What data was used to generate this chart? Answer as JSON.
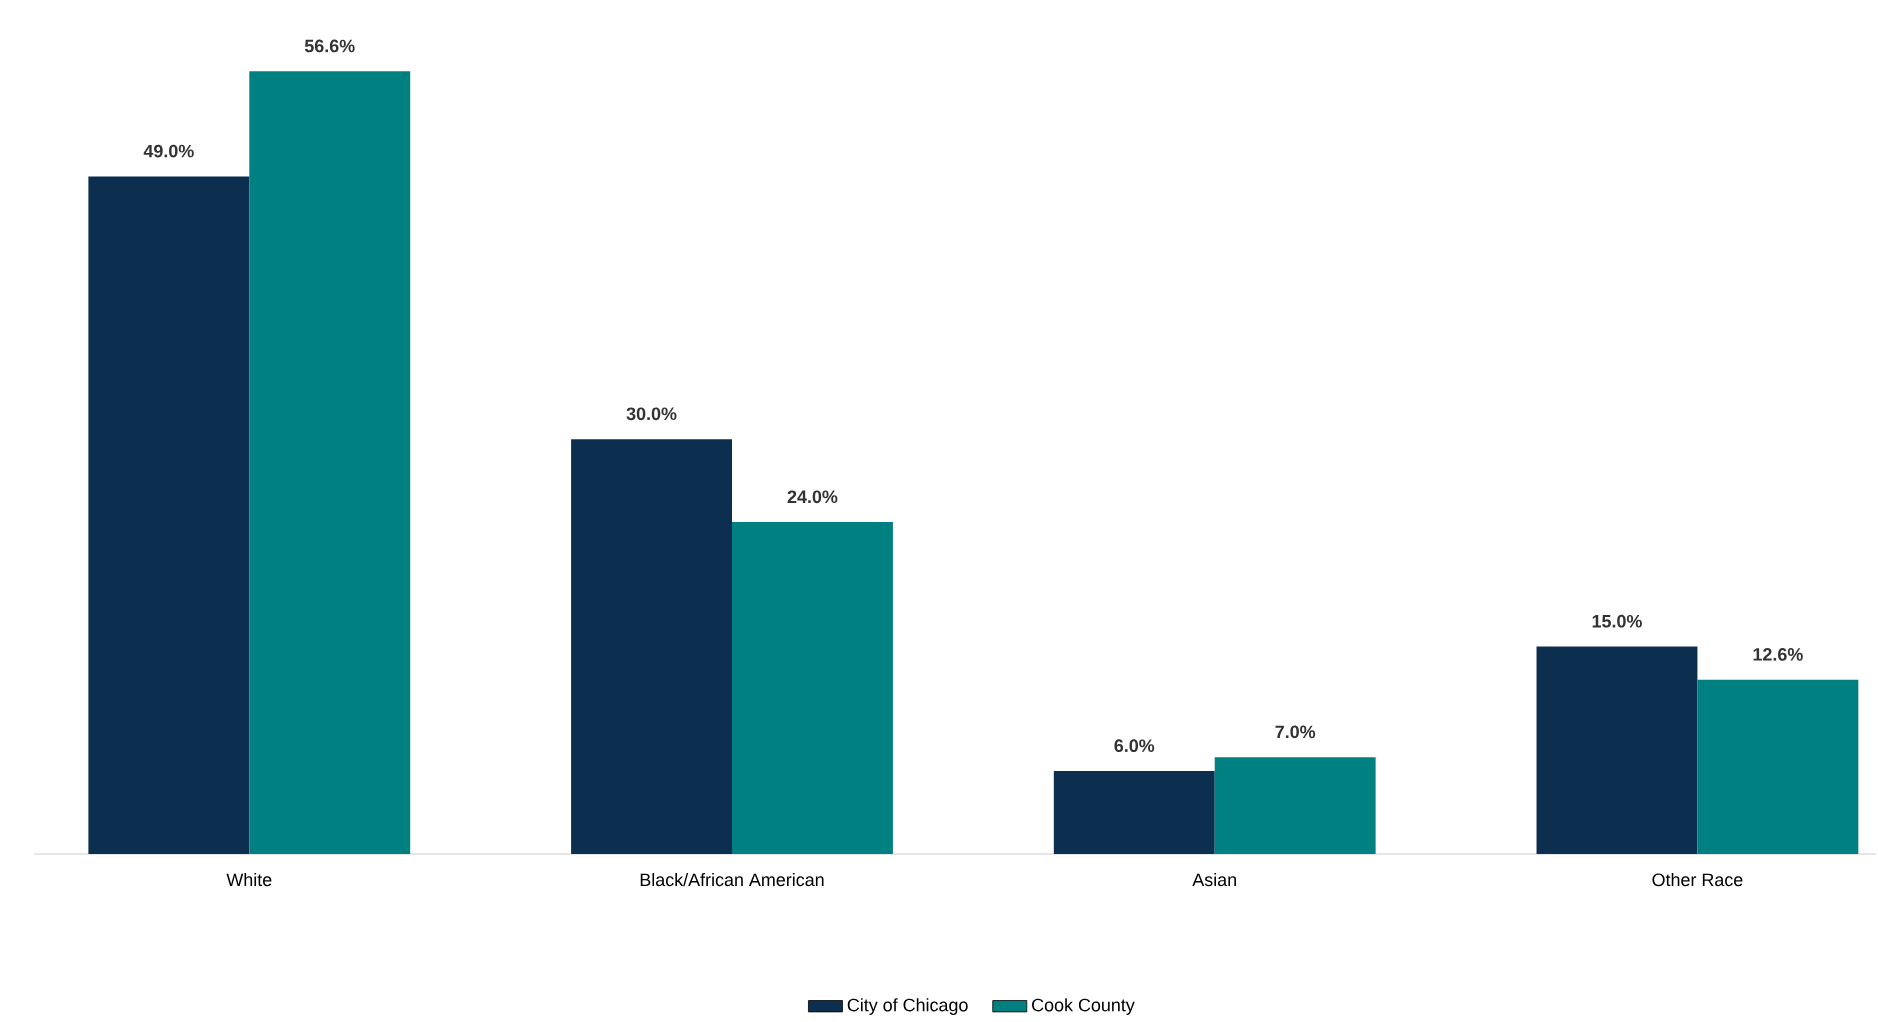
{
  "chart_data": {
    "type": "bar",
    "categories": [
      "White",
      "Black/African American",
      "Asian",
      "Other Race"
    ],
    "series": [
      {
        "name": "City of Chicago",
        "color": "#0d2f4f",
        "values": [
          49.0,
          30.0,
          6.0,
          15.0
        ],
        "value_labels": [
          "49.0%",
          "30.0%",
          "6.0%",
          "15.0%"
        ]
      },
      {
        "name": "Cook County",
        "color": "#008080",
        "values": [
          56.6,
          24.0,
          7.0,
          12.6
        ],
        "value_labels": [
          "56.6%",
          "24.0%",
          "7.0%",
          "12.6%"
        ]
      }
    ],
    "legend": "bottom"
  }
}
